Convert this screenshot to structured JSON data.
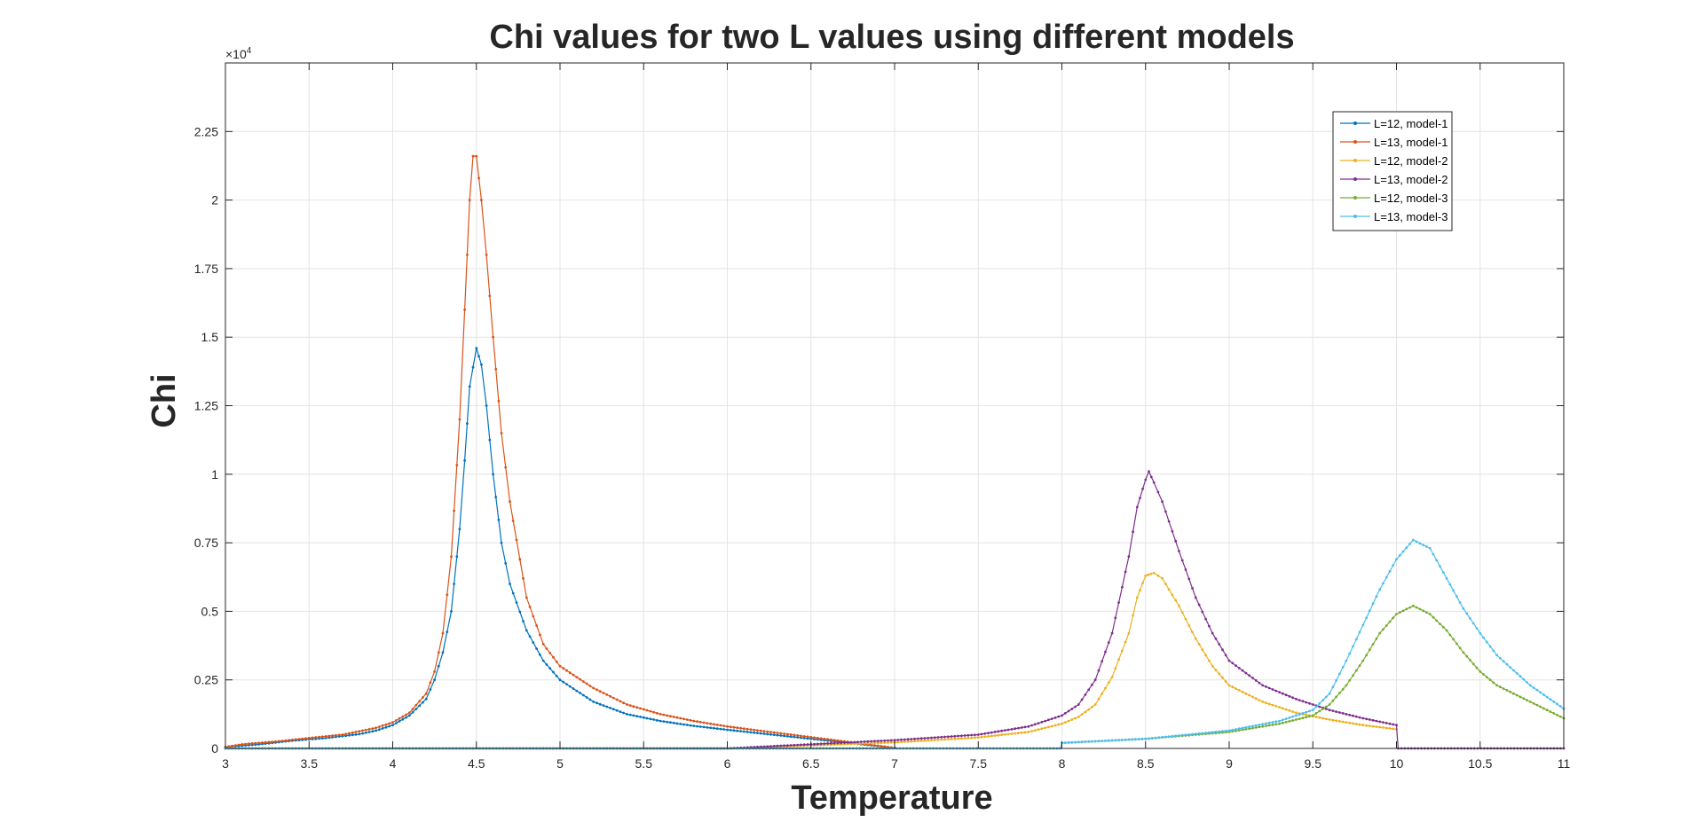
{
  "chart_data": {
    "type": "line",
    "title": "Chi values for two L values using different models",
    "xlabel": "Temperature",
    "ylabel": "Chi",
    "exponent_label": "×10^4",
    "exponent_base": "×10",
    "exponent_power": "4",
    "xlim": [
      3,
      11
    ],
    "ylim": [
      0,
      25000
    ],
    "grid": true,
    "legend_position": "top-right",
    "x_ticks": [
      3,
      3.5,
      4,
      4.5,
      5,
      5.5,
      6,
      6.5,
      7,
      7.5,
      8,
      8.5,
      9,
      9.5,
      10,
      10.5,
      11
    ],
    "x_tick_labels": [
      "3",
      "3.5",
      "4",
      "4.5",
      "5",
      "5.5",
      "6",
      "6.5",
      "7",
      "7.5",
      "8",
      "8.5",
      "9",
      "9.5",
      "10",
      "10.5",
      "11"
    ],
    "y_ticks": [
      0,
      2500,
      5000,
      7500,
      10000,
      12500,
      15000,
      17500,
      20000,
      22500
    ],
    "y_tick_labels": [
      "0",
      "0.25",
      "0.5",
      "0.75",
      "1",
      "1.25",
      "1.5",
      "1.75",
      "2",
      "2.25"
    ],
    "series": [
      {
        "name": "L=12, model-1",
        "color": "#0072BD",
        "points": [
          [
            3.0,
            50
          ],
          [
            3.2,
            150
          ],
          [
            3.4,
            280
          ],
          [
            3.6,
            380
          ],
          [
            3.8,
            520
          ],
          [
            3.9,
            650
          ],
          [
            4.0,
            850
          ],
          [
            4.1,
            1200
          ],
          [
            4.2,
            1800
          ],
          [
            4.25,
            2500
          ],
          [
            4.3,
            3500
          ],
          [
            4.35,
            5000
          ],
          [
            4.4,
            8000
          ],
          [
            4.43,
            10500
          ],
          [
            4.46,
            13200
          ],
          [
            4.5,
            14600
          ],
          [
            4.53,
            14000
          ],
          [
            4.56,
            12500
          ],
          [
            4.6,
            10000
          ],
          [
            4.65,
            7500
          ],
          [
            4.7,
            6000
          ],
          [
            4.8,
            4300
          ],
          [
            4.9,
            3200
          ],
          [
            5.0,
            2500
          ],
          [
            5.2,
            1700
          ],
          [
            5.4,
            1250
          ],
          [
            5.6,
            1000
          ],
          [
            5.8,
            820
          ],
          [
            6.0,
            680
          ],
          [
            7.0,
            20
          ]
        ]
      },
      {
        "name": "L=13, model-1",
        "color": "#D95319",
        "points": [
          [
            3.0,
            50
          ],
          [
            3.1,
            150
          ],
          [
            3.3,
            250
          ],
          [
            3.5,
            380
          ],
          [
            3.7,
            500
          ],
          [
            3.9,
            750
          ],
          [
            4.0,
            950
          ],
          [
            4.1,
            1300
          ],
          [
            4.2,
            2000
          ],
          [
            4.25,
            2800
          ],
          [
            4.3,
            4200
          ],
          [
            4.35,
            7000
          ],
          [
            4.4,
            12000
          ],
          [
            4.43,
            16000
          ],
          [
            4.46,
            20000
          ],
          [
            4.48,
            21600
          ],
          [
            4.5,
            21600
          ],
          [
            4.53,
            20000
          ],
          [
            4.56,
            18000
          ],
          [
            4.6,
            15000
          ],
          [
            4.65,
            11500
          ],
          [
            4.7,
            9000
          ],
          [
            4.8,
            5500
          ],
          [
            4.9,
            3800
          ],
          [
            5.0,
            3000
          ],
          [
            5.2,
            2200
          ],
          [
            5.4,
            1600
          ],
          [
            5.6,
            1250
          ],
          [
            5.8,
            1000
          ],
          [
            6.0,
            800
          ],
          [
            7.0,
            20
          ]
        ]
      },
      {
        "name": "L=12, model-2",
        "color": "#EDB120",
        "points": [
          [
            3.0,
            0
          ],
          [
            6.0,
            0
          ],
          [
            7.0,
            220
          ],
          [
            7.5,
            400
          ],
          [
            7.8,
            600
          ],
          [
            8.0,
            900
          ],
          [
            8.1,
            1150
          ],
          [
            8.2,
            1600
          ],
          [
            8.3,
            2600
          ],
          [
            8.4,
            4200
          ],
          [
            8.45,
            5500
          ],
          [
            8.5,
            6300
          ],
          [
            8.55,
            6400
          ],
          [
            8.6,
            6200
          ],
          [
            8.7,
            5200
          ],
          [
            8.8,
            4000
          ],
          [
            8.9,
            3000
          ],
          [
            9.0,
            2300
          ],
          [
            9.2,
            1700
          ],
          [
            9.4,
            1300
          ],
          [
            9.6,
            1050
          ],
          [
            9.8,
            850
          ],
          [
            10.0,
            700
          ]
        ]
      },
      {
        "name": "L=13, model-2",
        "color": "#7E2F8E",
        "points": [
          [
            3.0,
            0
          ],
          [
            6.0,
            0
          ],
          [
            7.0,
            300
          ],
          [
            7.5,
            500
          ],
          [
            7.8,
            800
          ],
          [
            8.0,
            1200
          ],
          [
            8.1,
            1600
          ],
          [
            8.2,
            2500
          ],
          [
            8.3,
            4200
          ],
          [
            8.4,
            7000
          ],
          [
            8.45,
            8800
          ],
          [
            8.5,
            9800
          ],
          [
            8.52,
            10100
          ],
          [
            8.55,
            9700
          ],
          [
            8.6,
            9000
          ],
          [
            8.7,
            7200
          ],
          [
            8.8,
            5500
          ],
          [
            8.9,
            4200
          ],
          [
            9.0,
            3200
          ],
          [
            9.2,
            2300
          ],
          [
            9.4,
            1800
          ],
          [
            9.6,
            1400
          ],
          [
            9.8,
            1100
          ],
          [
            10.0,
            850
          ],
          [
            10.01,
            0
          ],
          [
            11.0,
            0
          ]
        ]
      },
      {
        "name": "L=12, model-3",
        "color": "#77AC30",
        "points": [
          [
            3.0,
            0
          ],
          [
            7.99,
            0
          ],
          [
            8.0,
            200
          ],
          [
            8.5,
            350
          ],
          [
            9.0,
            600
          ],
          [
            9.3,
            900
          ],
          [
            9.5,
            1200
          ],
          [
            9.6,
            1600
          ],
          [
            9.7,
            2300
          ],
          [
            9.8,
            3200
          ],
          [
            9.9,
            4200
          ],
          [
            10.0,
            4900
          ],
          [
            10.1,
            5200
          ],
          [
            10.2,
            4900
          ],
          [
            10.3,
            4300
          ],
          [
            10.4,
            3500
          ],
          [
            10.5,
            2800
          ],
          [
            10.6,
            2300
          ],
          [
            10.8,
            1700
          ],
          [
            11.0,
            1100
          ]
        ]
      },
      {
        "name": "L=13, model-3",
        "color": "#4DBEEE",
        "points": [
          [
            3.0,
            0
          ],
          [
            7.99,
            0
          ],
          [
            8.0,
            200
          ],
          [
            8.5,
            350
          ],
          [
            9.0,
            650
          ],
          [
            9.3,
            1000
          ],
          [
            9.5,
            1400
          ],
          [
            9.6,
            2000
          ],
          [
            9.7,
            3200
          ],
          [
            9.8,
            4500
          ],
          [
            9.9,
            5800
          ],
          [
            10.0,
            6900
          ],
          [
            10.1,
            7600
          ],
          [
            10.2,
            7300
          ],
          [
            10.3,
            6200
          ],
          [
            10.4,
            5100
          ],
          [
            10.5,
            4200
          ],
          [
            10.6,
            3400
          ],
          [
            10.8,
            2300
          ],
          [
            11.0,
            1450
          ]
        ]
      }
    ]
  }
}
